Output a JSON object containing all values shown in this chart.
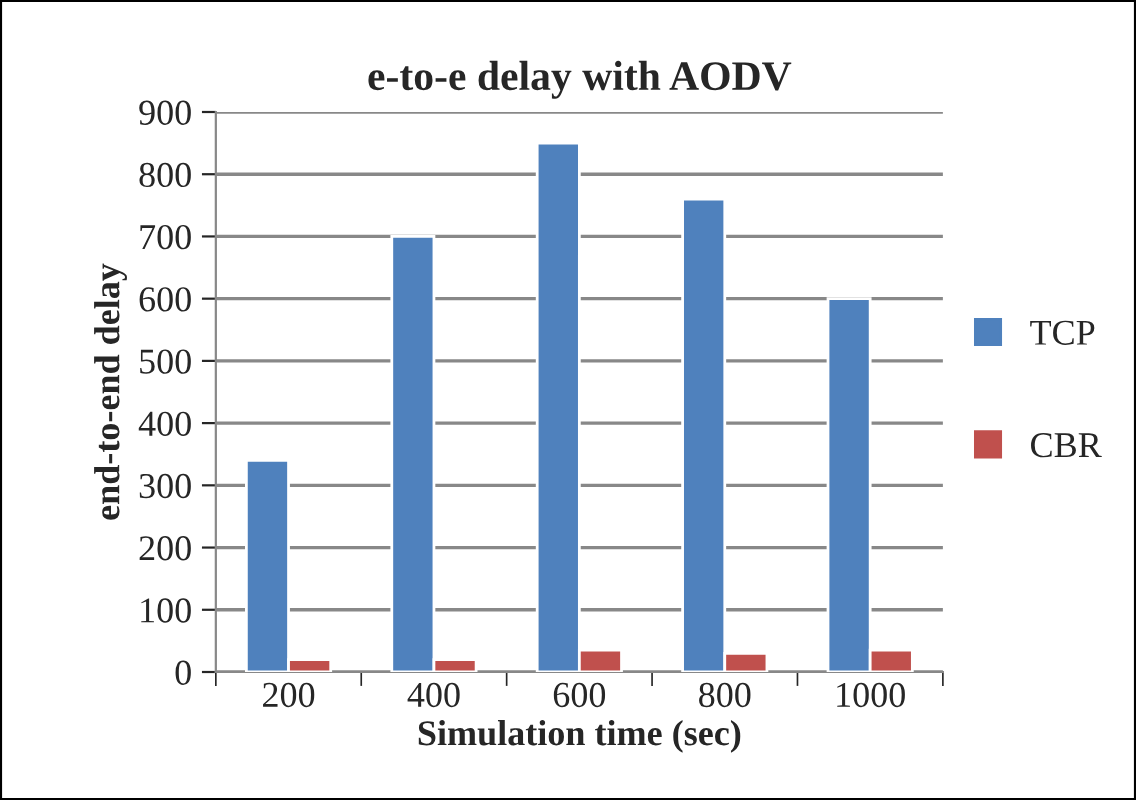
{
  "chart_data": {
    "type": "bar",
    "title": "e-to-e delay with AODV",
    "xlabel": "Simulation time (sec)",
    "ylabel": "end-to-end delay",
    "categories": [
      "200",
      "400",
      "600",
      "800",
      "1000"
    ],
    "series": [
      {
        "name": "TCP",
        "color": "#4f81bd",
        "values": [
          340,
          700,
          850,
          760,
          600
        ]
      },
      {
        "name": "CBR",
        "color": "#c0504d",
        "values": [
          20,
          20,
          35,
          30,
          35
        ]
      }
    ],
    "ylim": [
      0,
      900
    ],
    "yticks": [
      0,
      100,
      200,
      300,
      400,
      500,
      600,
      700,
      800,
      900
    ],
    "grid": "y",
    "legend": "right"
  }
}
